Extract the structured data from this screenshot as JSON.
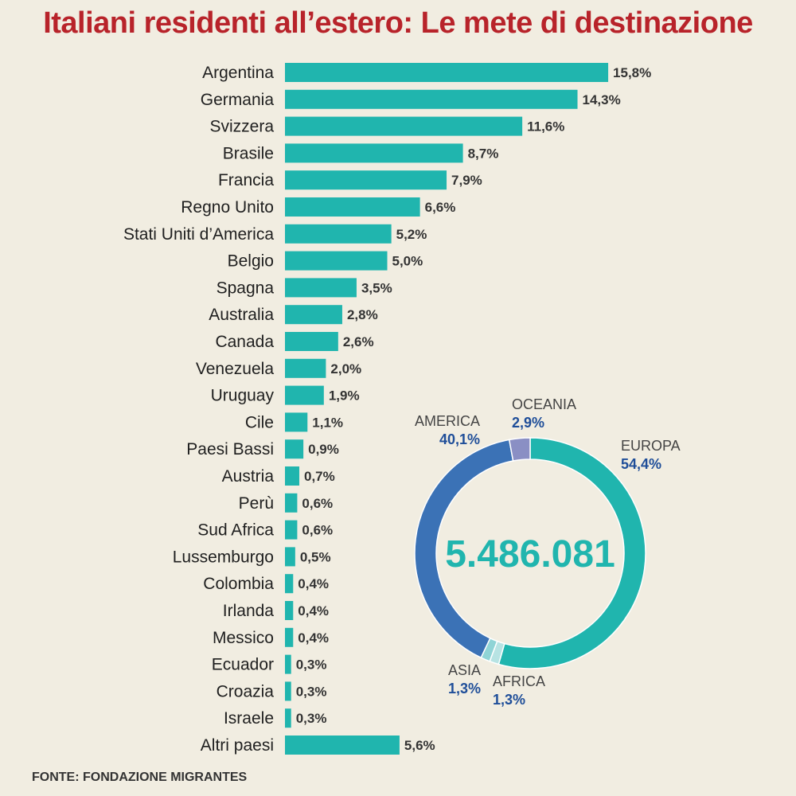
{
  "title": "Italiani residenti all’estero: Le mete di destinazione",
  "source": "FONTE: FONDAZIONE MIGRANTES",
  "colors": {
    "background": "#f1ede1",
    "bar": "#20b5ae",
    "title": "#b8232a",
    "europa": "#20b5ae",
    "america": "#3b72b6",
    "oceania": "#8a8fc4",
    "asia": "#8fd4d6",
    "africa": "#b7e3e3",
    "region_value": "#1f4e99"
  },
  "chart_data": [
    {
      "type": "bar",
      "orientation": "horizontal",
      "categories": [
        "Argentina",
        "Germania",
        "Svizzera",
        "Brasile",
        "Francia",
        "Regno Unito",
        "Stati Uniti d’America",
        "Belgio",
        "Spagna",
        "Australia",
        "Canada",
        "Venezuela",
        "Uruguay",
        "Cile",
        "Paesi Bassi",
        "Austria",
        "Perù",
        "Sud Africa",
        "Lussemburgo",
        "Colombia",
        "Irlanda",
        "Messico",
        "Ecuador",
        "Croazia",
        "Israele",
        "Altri paesi"
      ],
      "values": [
        15.8,
        14.3,
        11.6,
        8.7,
        7.9,
        6.6,
        5.2,
        5.0,
        3.5,
        2.8,
        2.6,
        2.0,
        1.9,
        1.1,
        0.9,
        0.7,
        0.6,
        0.6,
        0.5,
        0.4,
        0.4,
        0.4,
        0.3,
        0.3,
        0.3,
        5.6
      ],
      "value_labels": [
        "15,8%",
        "14,3%",
        "11,6%",
        "8,7%",
        "7,9%",
        "6,6%",
        "5,2%",
        "5,0%",
        "3,5%",
        "2,8%",
        "2,6%",
        "2,0%",
        "1,9%",
        "1,1%",
        "0,9%",
        "0,7%",
        "0,6%",
        "0,6%",
        "0,5%",
        "0,4%",
        "0,4%",
        "0,4%",
        "0,3%",
        "0,3%",
        "0,3%",
        "5,6%"
      ],
      "unit": "%"
    },
    {
      "type": "pie",
      "donut": true,
      "center_label": "5.486.081",
      "slices": [
        {
          "name": "EUROPA",
          "value": 54.4,
          "label": "54,4%",
          "color": "#20b5ae"
        },
        {
          "name": "AFRICA",
          "value": 1.3,
          "label": "1,3%",
          "color": "#b7e3e3"
        },
        {
          "name": "ASIA",
          "value": 1.3,
          "label": "1,3%",
          "color": "#8fd4d6"
        },
        {
          "name": "AMERICA",
          "value": 40.1,
          "label": "40,1%",
          "color": "#3b72b6"
        },
        {
          "name": "OCEANIA",
          "value": 2.9,
          "label": "2,9%",
          "color": "#8a8fc4"
        }
      ]
    }
  ]
}
